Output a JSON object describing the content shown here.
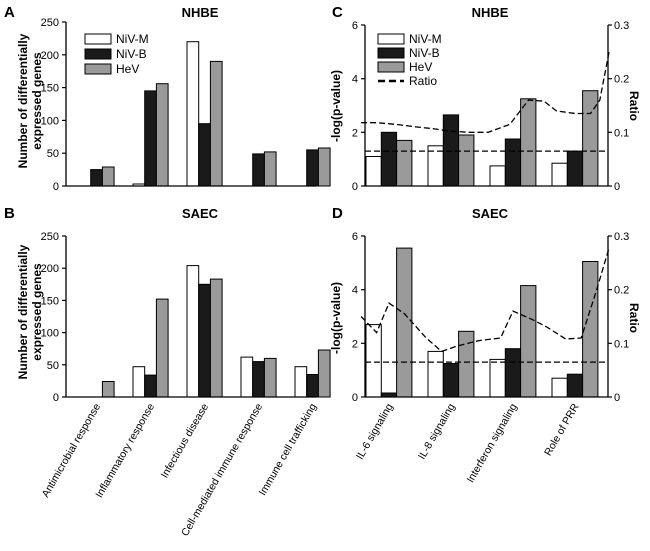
{
  "figure": {
    "categories_left": [
      "Antimicrobial response",
      "Inflammatory response",
      "Infectious disease",
      "Cell-mediated immune response",
      "Immune cell trafficking"
    ],
    "categories_right": [
      "IL-6 signaling",
      "IL-8 signaling",
      "Interferon signaling",
      "Role of PRR"
    ],
    "legend": {
      "niv_m": "NiV-M",
      "niv_b": "NiV-B",
      "hev": "HeV",
      "ratio": "Ratio"
    },
    "colors": {
      "niv_m": "#ffffff",
      "niv_b": "#1a1a1a",
      "hev": "#9a9a9a",
      "stroke": "#000000"
    }
  },
  "chart_data": [
    {
      "id": "A",
      "type": "bar",
      "letter": "A",
      "title": "NHBE",
      "ylabel": "Number of differentially expressed genes",
      "ylabel_lines": [
        "Number of differentially",
        "expressed genes"
      ],
      "ylim": [
        0,
        250
      ],
      "yticks": [
        0,
        50,
        100,
        150,
        200,
        250
      ],
      "categories": [
        "Antimicrobial response",
        "Inflammatory response",
        "Infectious disease",
        "Cell-mediated immune response",
        "Immune cell trafficking"
      ],
      "series": [
        {
          "name": "NiV-M",
          "values": [
            0,
            3,
            220,
            0,
            0
          ]
        },
        {
          "name": "NiV-B",
          "values": [
            25,
            145,
            95,
            49,
            55
          ]
        },
        {
          "name": "HeV",
          "values": [
            29,
            156,
            190,
            52,
            58
          ]
        }
      ],
      "legend_position": "top-left"
    },
    {
      "id": "B",
      "type": "bar",
      "letter": "B",
      "title": "SAEC",
      "ylabel": "Number of differentially expressed genes",
      "ylabel_lines": [
        "Number of differentially",
        "expressed genes"
      ],
      "ylim": [
        0,
        250
      ],
      "yticks": [
        0,
        50,
        100,
        150,
        200,
        250
      ],
      "categories": [
        "Antimicrobial response",
        "Inflammatory response",
        "Infectious disease",
        "Cell-mediated immune response",
        "Immune cell trafficking"
      ],
      "series": [
        {
          "name": "NiV-M",
          "values": [
            0,
            47,
            204,
            62,
            47
          ]
        },
        {
          "name": "NiV-B",
          "values": [
            0,
            34,
            175,
            55,
            35
          ]
        },
        {
          "name": "HeV",
          "values": [
            24,
            152,
            183,
            60,
            73
          ]
        }
      ]
    },
    {
      "id": "C",
      "type": "bar",
      "letter": "C",
      "title": "NHBE",
      "ylabel": "-log(p-value)",
      "y2label": "Ratio",
      "ylim": [
        0,
        6
      ],
      "yticks": [
        0,
        2,
        4,
        6
      ],
      "y2lim": [
        0,
        0.3
      ],
      "y2ticks": [
        0,
        0.1,
        0.2,
        0.3
      ],
      "categories": [
        "IL-6 signaling",
        "IL-8 signaling",
        "Interferon signaling",
        "Role of PRR"
      ],
      "series": [
        {
          "name": "NiV-M",
          "values": [
            1.1,
            1.5,
            0.75,
            0.85
          ]
        },
        {
          "name": "NiV-B",
          "values": [
            2.0,
            2.65,
            1.75,
            1.3
          ]
        },
        {
          "name": "HeV",
          "values": [
            1.7,
            1.9,
            3.25,
            3.55
          ]
        }
      ],
      "threshold": 1.3,
      "ratio_x": [
        -0.45,
        -0.2,
        0.1,
        0.45,
        0.7,
        1.0,
        1.3,
        1.6,
        1.95,
        2.25,
        2.5,
        2.7,
        3.0,
        3.25,
        3.4,
        3.55
      ],
      "ratio_values": [
        0.118,
        0.118,
        0.115,
        0.11,
        0.107,
        0.102,
        0.1,
        0.1,
        0.115,
        0.16,
        0.158,
        0.14,
        0.135,
        0.135,
        0.16,
        0.25
      ],
      "legend_position": "top-left"
    },
    {
      "id": "D",
      "type": "bar",
      "letter": "D",
      "title": "SAEC",
      "ylabel": "-log(p-value)",
      "y2label": "Ratio",
      "ylim": [
        0,
        6
      ],
      "yticks": [
        0,
        2,
        4,
        6
      ],
      "y2lim": [
        0,
        0.3
      ],
      "y2ticks": [
        0,
        0.1,
        0.2,
        0.3
      ],
      "categories": [
        "IL-6 signaling",
        "IL-8 signaling",
        "Interferon signaling",
        "Role of PRR"
      ],
      "series": [
        {
          "name": "NiV-M",
          "values": [
            2.7,
            1.7,
            1.4,
            0.7
          ]
        },
        {
          "name": "NiV-B",
          "values": [
            0.15,
            1.25,
            1.8,
            0.85
          ]
        },
        {
          "name": "HeV",
          "values": [
            5.55,
            2.45,
            4.15,
            5.05
          ]
        }
      ],
      "threshold": 1.3,
      "ratio_x": [
        -0.45,
        -0.2,
        0.0,
        0.25,
        0.6,
        0.85,
        1.1,
        1.45,
        1.8,
        2.0,
        2.3,
        2.55,
        2.85,
        3.1,
        3.35,
        3.55
      ],
      "ratio_values": [
        0.15,
        0.12,
        0.175,
        0.155,
        0.11,
        0.085,
        0.095,
        0.105,
        0.11,
        0.16,
        0.145,
        0.13,
        0.108,
        0.11,
        0.2,
        0.278
      ]
    }
  ]
}
